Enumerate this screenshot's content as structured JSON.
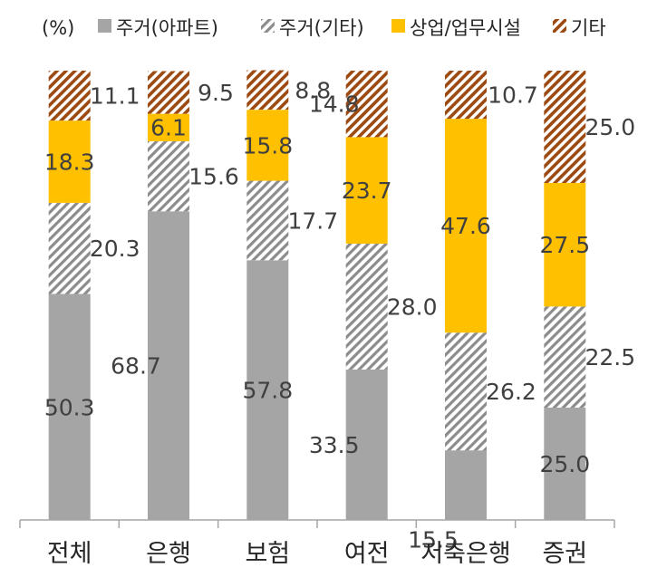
{
  "chart_data": {
    "type": "bar",
    "stacked": true,
    "unit": "(%)",
    "categories": [
      "전체",
      "은행",
      "보험",
      "여전",
      "저축은행",
      "증권"
    ],
    "series": [
      {
        "name": "주거(아파트)",
        "color": "#a5a5a5",
        "pattern": "solid",
        "values": [
          50.3,
          68.7,
          57.8,
          33.5,
          15.5,
          25.0
        ],
        "labels": [
          "50.3",
          "68.7",
          "57.8",
          "33.5",
          "15.5",
          "25.0"
        ]
      },
      {
        "name": "주거(기타)",
        "color": "#8c8c8c",
        "pattern": "diagonal-gray",
        "values": [
          20.3,
          15.6,
          17.7,
          28.0,
          26.2,
          22.5
        ],
        "labels": [
          "20.3",
          "15.6",
          "17.7",
          "28.0",
          "26.2",
          "22.5"
        ]
      },
      {
        "name": "상업/업무시설",
        "color": "#ffc000",
        "pattern": "solid",
        "values": [
          18.3,
          6.1,
          15.8,
          23.7,
          47.6,
          27.5
        ],
        "labels": [
          "18.3",
          "6.1",
          "15.8",
          "23.7",
          "47.6",
          "27.5"
        ]
      },
      {
        "name": "기타",
        "color": "#9c4a12",
        "pattern": "diagonal-brown",
        "values": [
          11.1,
          9.5,
          8.8,
          14.8,
          10.7,
          25.0
        ],
        "labels": [
          "11.1",
          "9.5",
          "8.8",
          "14.8",
          "10.7",
          "25.0"
        ]
      }
    ],
    "ylim": [
      0,
      100
    ],
    "legend": "top",
    "grid": false
  }
}
